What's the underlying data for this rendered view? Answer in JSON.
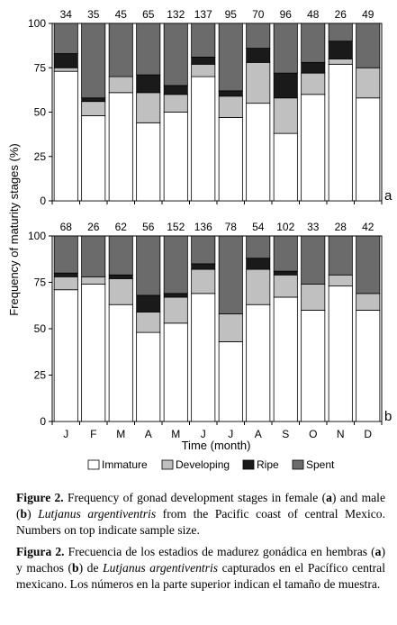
{
  "figure": {
    "ylabel": "Frequency of maturity stages (%)",
    "xlabel": "Time (month)",
    "legend": [
      {
        "label": "Immature",
        "color": "#ffffff"
      },
      {
        "label": "Developing",
        "color": "#c0c0c0"
      },
      {
        "label": "Ripe",
        "color": "#1a1a1a"
      },
      {
        "label": "Spent",
        "color": "#6b6b6b"
      }
    ]
  },
  "chart_data": [
    {
      "type": "bar",
      "stacked": true,
      "panel_label": "a",
      "categories": [
        "J",
        "F",
        "M",
        "A",
        "M",
        "J",
        "J",
        "A",
        "S",
        "O",
        "N",
        "D"
      ],
      "sample_sizes": [
        "34",
        "35",
        "45",
        "65",
        "132",
        "137",
        "95",
        "70",
        "96",
        "48",
        "26",
        "49"
      ],
      "ylim": [
        0,
        100
      ],
      "yticks": [
        "0",
        "25",
        "50",
        "75",
        "100"
      ],
      "show_xticklabels": false,
      "series": [
        {
          "name": "Immature",
          "color": "#ffffff",
          "values": [
            73,
            48,
            61,
            44,
            50,
            70,
            47,
            55,
            38,
            60,
            77,
            58
          ]
        },
        {
          "name": "Developing",
          "color": "#c0c0c0",
          "values": [
            2,
            8,
            9,
            17,
            10,
            7,
            12,
            23,
            20,
            12,
            3,
            17
          ]
        },
        {
          "name": "Ripe",
          "color": "#1a1a1a",
          "values": [
            8,
            2,
            0,
            10,
            5,
            4,
            3,
            8,
            14,
            6,
            10,
            0
          ]
        },
        {
          "name": "Spent",
          "color": "#6b6b6b",
          "values": [
            17,
            42,
            30,
            29,
            35,
            19,
            38,
            14,
            28,
            22,
            10,
            25
          ]
        }
      ]
    },
    {
      "type": "bar",
      "stacked": true,
      "panel_label": "b",
      "categories": [
        "J",
        "F",
        "M",
        "A",
        "M",
        "J",
        "J",
        "A",
        "S",
        "O",
        "N",
        "D"
      ],
      "sample_sizes": [
        "68",
        "26",
        "62",
        "56",
        "152",
        "136",
        "78",
        "54",
        "102",
        "33",
        "28",
        "42"
      ],
      "ylim": [
        0,
        100
      ],
      "yticks": [
        "0",
        "25",
        "50",
        "75",
        "100"
      ],
      "show_xticklabels": true,
      "series": [
        {
          "name": "Immature",
          "color": "#ffffff",
          "values": [
            71,
            74,
            63,
            48,
            53,
            69,
            43,
            63,
            67,
            60,
            73,
            60
          ]
        },
        {
          "name": "Developing",
          "color": "#c0c0c0",
          "values": [
            7,
            4,
            14,
            11,
            14,
            13,
            15,
            19,
            12,
            14,
            6,
            9
          ]
        },
        {
          "name": "Ripe",
          "color": "#1a1a1a",
          "values": [
            2,
            0,
            2,
            9,
            2,
            3,
            0,
            6,
            2,
            0,
            0,
            0
          ]
        },
        {
          "name": "Spent",
          "color": "#6b6b6b",
          "values": [
            20,
            22,
            21,
            32,
            31,
            15,
            42,
            12,
            19,
            26,
            21,
            31
          ]
        }
      ]
    }
  ],
  "caption_en": {
    "label": "Figure 2.",
    "t1": " Frequency of gonad development stages in female (",
    "a": "a",
    "t2": ") and male (",
    "b": "b",
    "t3": ") ",
    "species": "Lutjanus argentiventris",
    "t4": " from the Pacific coast of central Mexico. Numbers on top indicate sample size."
  },
  "caption_es": {
    "label": "Figura 2.",
    "t1": " Frecuencia de los estadios de madurez gonádica en hembras (",
    "a": "a",
    "t2": ") y machos (",
    "b": "b",
    "t3": ") de ",
    "species": "Lutjanus argentiventris",
    "t4": " capturados en el Pacífico central mexicano. Los números en la parte superior indican el tamaño de muestra."
  }
}
